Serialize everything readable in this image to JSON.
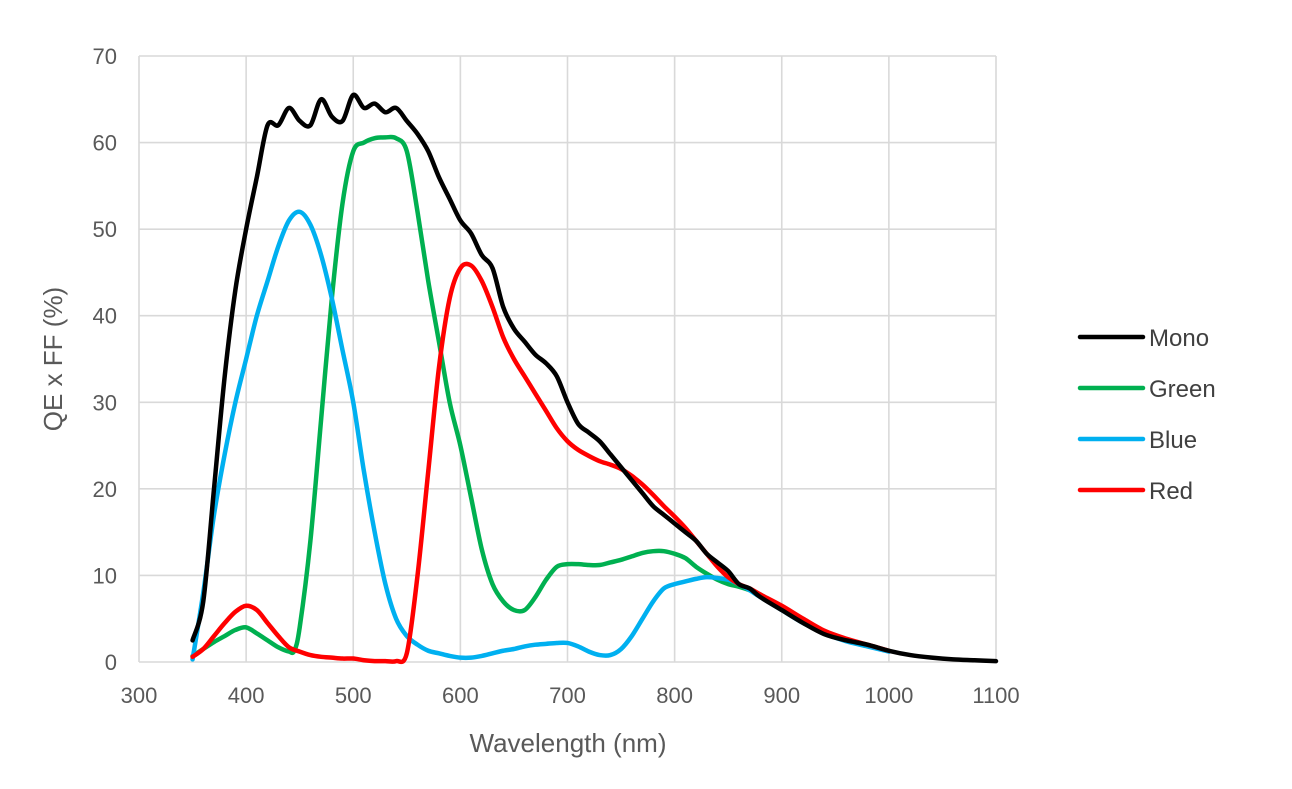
{
  "chart_data": {
    "type": "line",
    "title": "",
    "xlabel": "Wavelength (nm)",
    "ylabel": "QE x FF (%)",
    "xlim": [
      300,
      1100
    ],
    "ylim": [
      0,
      70
    ],
    "xticks": [
      300,
      400,
      500,
      600,
      700,
      800,
      900,
      1000,
      1100
    ],
    "yticks": [
      0,
      10,
      20,
      30,
      40,
      50,
      60,
      70
    ],
    "grid": true,
    "legend_position": "right",
    "series": [
      {
        "name": "Mono",
        "color": "#000000",
        "points": [
          [
            350,
            2.5
          ],
          [
            360,
            7
          ],
          [
            370,
            20
          ],
          [
            380,
            33
          ],
          [
            390,
            43
          ],
          [
            400,
            50
          ],
          [
            410,
            56
          ],
          [
            420,
            62
          ],
          [
            430,
            62
          ],
          [
            440,
            64
          ],
          [
            450,
            62.5
          ],
          [
            460,
            62
          ],
          [
            470,
            65
          ],
          [
            480,
            63
          ],
          [
            490,
            62.5
          ],
          [
            500,
            65.5
          ],
          [
            510,
            64
          ],
          [
            520,
            64.5
          ],
          [
            530,
            63.5
          ],
          [
            540,
            64
          ],
          [
            550,
            62.5
          ],
          [
            560,
            61
          ],
          [
            570,
            59
          ],
          [
            580,
            56
          ],
          [
            590,
            53.5
          ],
          [
            600,
            51
          ],
          [
            610,
            49.5
          ],
          [
            620,
            47
          ],
          [
            630,
            45.5
          ],
          [
            640,
            41
          ],
          [
            650,
            38.5
          ],
          [
            660,
            37
          ],
          [
            670,
            35.5
          ],
          [
            680,
            34.5
          ],
          [
            690,
            33
          ],
          [
            700,
            30
          ],
          [
            710,
            27.5
          ],
          [
            720,
            26.5
          ],
          [
            730,
            25.5
          ],
          [
            740,
            24
          ],
          [
            750,
            22.5
          ],
          [
            760,
            21
          ],
          [
            770,
            19.5
          ],
          [
            780,
            18
          ],
          [
            790,
            17
          ],
          [
            800,
            16
          ],
          [
            810,
            15
          ],
          [
            820,
            14
          ],
          [
            830,
            12.5
          ],
          [
            840,
            11.5
          ],
          [
            850,
            10.5
          ],
          [
            860,
            9
          ],
          [
            870,
            8.5
          ],
          [
            880,
            7.5
          ],
          [
            900,
            6
          ],
          [
            920,
            4.5
          ],
          [
            940,
            3.2
          ],
          [
            960,
            2.5
          ],
          [
            980,
            2
          ],
          [
            1000,
            1.3
          ],
          [
            1020,
            0.8
          ],
          [
            1040,
            0.5
          ],
          [
            1060,
            0.3
          ],
          [
            1080,
            0.2
          ],
          [
            1100,
            0.1
          ]
        ]
      },
      {
        "name": "Green",
        "color": "#00b050",
        "points": [
          [
            350,
            0.7
          ],
          [
            360,
            1.5
          ],
          [
            370,
            2.3
          ],
          [
            380,
            3
          ],
          [
            390,
            3.7
          ],
          [
            400,
            4
          ],
          [
            410,
            3.3
          ],
          [
            420,
            2.5
          ],
          [
            430,
            1.7
          ],
          [
            440,
            1.2
          ],
          [
            445,
            1.3
          ],
          [
            450,
            4
          ],
          [
            460,
            14
          ],
          [
            470,
            28
          ],
          [
            480,
            42
          ],
          [
            490,
            53
          ],
          [
            500,
            59
          ],
          [
            510,
            60
          ],
          [
            520,
            60.5
          ],
          [
            530,
            60.6
          ],
          [
            540,
            60.5
          ],
          [
            550,
            59
          ],
          [
            560,
            52
          ],
          [
            570,
            44
          ],
          [
            580,
            37
          ],
          [
            590,
            30
          ],
          [
            600,
            25
          ],
          [
            610,
            19
          ],
          [
            620,
            13
          ],
          [
            630,
            9
          ],
          [
            640,
            7
          ],
          [
            650,
            6
          ],
          [
            660,
            6
          ],
          [
            670,
            7.5
          ],
          [
            680,
            9.5
          ],
          [
            690,
            11
          ],
          [
            700,
            11.3
          ],
          [
            710,
            11.3
          ],
          [
            720,
            11.2
          ],
          [
            730,
            11.2
          ],
          [
            740,
            11.5
          ],
          [
            750,
            11.8
          ],
          [
            760,
            12.2
          ],
          [
            770,
            12.6
          ],
          [
            780,
            12.8
          ],
          [
            790,
            12.8
          ],
          [
            800,
            12.5
          ],
          [
            810,
            12
          ],
          [
            820,
            11
          ],
          [
            830,
            10.2
          ],
          [
            840,
            9.5
          ],
          [
            850,
            9
          ],
          [
            860,
            8.7
          ],
          [
            870,
            8.3
          ],
          [
            880,
            7.8
          ],
          [
            900,
            6.3
          ],
          [
            920,
            4.8
          ],
          [
            940,
            3.5
          ],
          [
            960,
            2.5
          ],
          [
            980,
            1.9
          ],
          [
            1000,
            1.3
          ]
        ]
      },
      {
        "name": "Blue",
        "color": "#00b0f0",
        "points": [
          [
            350,
            0.3
          ],
          [
            360,
            8
          ],
          [
            370,
            17
          ],
          [
            380,
            24
          ],
          [
            390,
            30
          ],
          [
            400,
            35
          ],
          [
            410,
            40
          ],
          [
            420,
            44
          ],
          [
            430,
            48
          ],
          [
            440,
            51
          ],
          [
            450,
            52
          ],
          [
            460,
            50.5
          ],
          [
            470,
            47
          ],
          [
            480,
            42
          ],
          [
            490,
            36
          ],
          [
            500,
            30
          ],
          [
            510,
            22
          ],
          [
            520,
            15
          ],
          [
            530,
            9
          ],
          [
            540,
            5
          ],
          [
            550,
            3
          ],
          [
            560,
            2
          ],
          [
            570,
            1.3
          ],
          [
            580,
            1
          ],
          [
            590,
            0.7
          ],
          [
            600,
            0.5
          ],
          [
            610,
            0.5
          ],
          [
            620,
            0.7
          ],
          [
            630,
            1
          ],
          [
            640,
            1.3
          ],
          [
            650,
            1.5
          ],
          [
            660,
            1.8
          ],
          [
            670,
            2
          ],
          [
            680,
            2.1
          ],
          [
            690,
            2.2
          ],
          [
            700,
            2.2
          ],
          [
            710,
            1.8
          ],
          [
            720,
            1.2
          ],
          [
            730,
            0.8
          ],
          [
            740,
            0.8
          ],
          [
            750,
            1.5
          ],
          [
            760,
            3
          ],
          [
            770,
            5
          ],
          [
            780,
            7
          ],
          [
            790,
            8.5
          ],
          [
            800,
            9
          ],
          [
            810,
            9.3
          ],
          [
            820,
            9.6
          ],
          [
            830,
            9.8
          ],
          [
            840,
            9.7
          ],
          [
            850,
            9.5
          ],
          [
            860,
            9
          ],
          [
            870,
            8.3
          ],
          [
            880,
            7.5
          ],
          [
            900,
            6
          ],
          [
            920,
            4.5
          ],
          [
            940,
            3.3
          ],
          [
            960,
            2.4
          ],
          [
            980,
            1.8
          ],
          [
            1000,
            1.2
          ]
        ]
      },
      {
        "name": "Red",
        "color": "#ff0000",
        "points": [
          [
            350,
            0.6
          ],
          [
            360,
            1.5
          ],
          [
            370,
            3
          ],
          [
            380,
            4.5
          ],
          [
            390,
            5.8
          ],
          [
            400,
            6.5
          ],
          [
            410,
            6
          ],
          [
            420,
            4.5
          ],
          [
            430,
            3
          ],
          [
            440,
            1.7
          ],
          [
            450,
            1.2
          ],
          [
            460,
            0.8
          ],
          [
            470,
            0.6
          ],
          [
            480,
            0.5
          ],
          [
            490,
            0.4
          ],
          [
            500,
            0.4
          ],
          [
            510,
            0.2
          ],
          [
            520,
            0.1
          ],
          [
            530,
            0.1
          ],
          [
            540,
            0.1
          ],
          [
            550,
            1
          ],
          [
            560,
            10
          ],
          [
            570,
            22
          ],
          [
            580,
            34
          ],
          [
            590,
            42
          ],
          [
            600,
            45.5
          ],
          [
            610,
            45.8
          ],
          [
            620,
            44
          ],
          [
            630,
            41
          ],
          [
            640,
            37.5
          ],
          [
            650,
            35
          ],
          [
            660,
            33
          ],
          [
            670,
            31
          ],
          [
            680,
            29
          ],
          [
            690,
            27
          ],
          [
            700,
            25.5
          ],
          [
            710,
            24.5
          ],
          [
            720,
            23.8
          ],
          [
            730,
            23.2
          ],
          [
            740,
            22.8
          ],
          [
            750,
            22.3
          ],
          [
            760,
            21.5
          ],
          [
            770,
            20.5
          ],
          [
            780,
            19.3
          ],
          [
            790,
            18
          ],
          [
            800,
            16.8
          ],
          [
            810,
            15.5
          ],
          [
            820,
            14
          ],
          [
            830,
            12.5
          ],
          [
            840,
            11
          ],
          [
            850,
            9.8
          ],
          [
            860,
            9
          ],
          [
            870,
            8.5
          ],
          [
            880,
            7.8
          ],
          [
            900,
            6.5
          ],
          [
            920,
            5
          ],
          [
            940,
            3.6
          ],
          [
            960,
            2.7
          ],
          [
            980,
            2
          ],
          [
            1000,
            1.3
          ]
        ]
      }
    ]
  }
}
